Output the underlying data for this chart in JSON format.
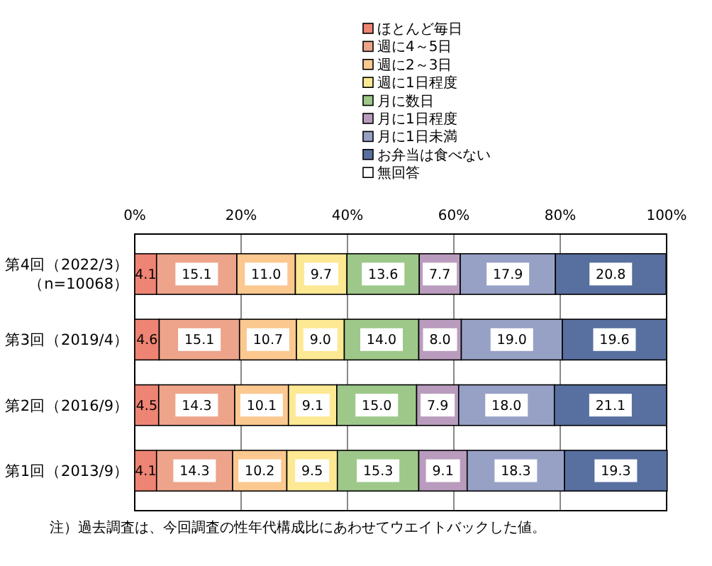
{
  "chart_data": {
    "type": "bar",
    "orientation": "horizontal",
    "stacked": true,
    "categories": [
      "第4回（2022/3）（n=10068）",
      "第3回（2019/4）",
      "第2回（2016/9）",
      "第1回（2013/9）"
    ],
    "series": [
      {
        "name": "ほとんど毎日",
        "color": "#ee8474",
        "values": [
          4.1,
          4.6,
          4.5,
          4.1
        ],
        "value_labels": [
          "4.1",
          "4.6",
          "4.5",
          "4.1"
        ]
      },
      {
        "name": "週に4～5日",
        "color": "#eda48a",
        "values": [
          15.1,
          15.1,
          14.3,
          14.3
        ],
        "value_labels": [
          "15.1",
          "15.1",
          "14.3",
          "14.3"
        ]
      },
      {
        "name": "週に2～3日",
        "color": "#fbc890",
        "values": [
          11.0,
          10.7,
          10.1,
          10.2
        ],
        "value_labels": [
          "11.0",
          "10.7",
          "10.1",
          "10.2"
        ]
      },
      {
        "name": "週に1日程度",
        "color": "#fde893",
        "values": [
          9.7,
          9.0,
          9.1,
          9.5
        ],
        "value_labels": [
          "9.7",
          "9.0",
          "9.1",
          "9.5"
        ]
      },
      {
        "name": "月に数日",
        "color": "#9dc88a",
        "values": [
          13.6,
          14.0,
          15.0,
          15.3
        ],
        "value_labels": [
          "13.6",
          "14.0",
          "15.0",
          "15.3"
        ]
      },
      {
        "name": "月に1日程度",
        "color": "#b99cbd",
        "values": [
          7.7,
          8.0,
          7.9,
          9.1
        ],
        "value_labels": [
          "7.7",
          "8.0",
          "7.9",
          "9.1"
        ]
      },
      {
        "name": "月に1日未満",
        "color": "#97a1c6",
        "values": [
          17.9,
          19.0,
          18.0,
          18.3
        ],
        "value_labels": [
          "17.9",
          "19.0",
          "18.0",
          "18.3"
        ]
      },
      {
        "name": "お弁当は食べない",
        "color": "#5870a0",
        "values": [
          20.8,
          19.6,
          21.1,
          19.3
        ],
        "value_labels": [
          "20.8",
          "19.6",
          "21.1",
          "19.3"
        ]
      },
      {
        "name": "無回答",
        "color": "#ffffff",
        "values": [
          0,
          0,
          0,
          0
        ],
        "value_labels": [
          null,
          null,
          null,
          null
        ]
      }
    ],
    "xlim": [
      0,
      100
    ],
    "xticks": [
      {
        "value": 0,
        "label": "0%"
      },
      {
        "value": 20,
        "label": "20%"
      },
      {
        "value": 40,
        "label": "40%"
      },
      {
        "value": 60,
        "label": "60%"
      },
      {
        "value": 80,
        "label": "80%"
      },
      {
        "value": 100,
        "label": "100%"
      }
    ],
    "grid": "x",
    "legend": "top",
    "annotations": [
      "注）過去調査は、今回調査の性年代構成比にあわせてウエイトバックした値。"
    ]
  }
}
